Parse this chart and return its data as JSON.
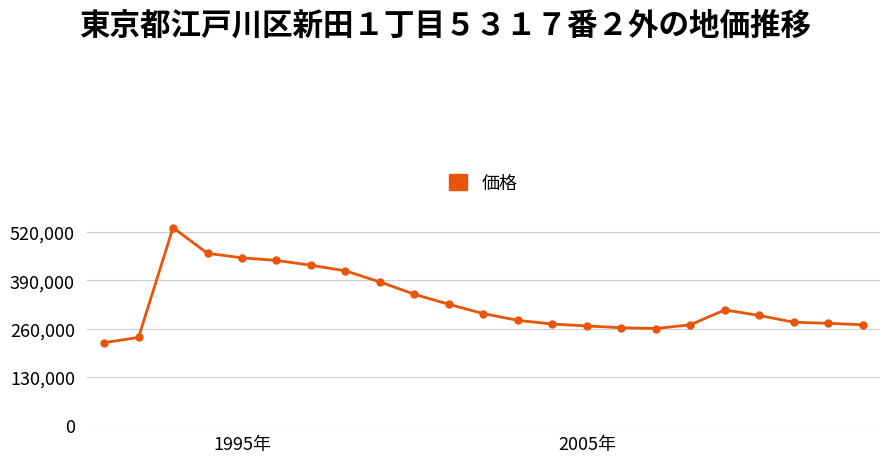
{
  "title": "東京都江戸川区新田１丁目５３１７番２外の地価推移",
  "legend_label": "価格",
  "line_color": "#e8550a",
  "marker_color": "#e8550a",
  "background_color": "#ffffff",
  "years": [
    1991,
    1992,
    1993,
    1994,
    1995,
    1996,
    1997,
    1998,
    1999,
    2000,
    2001,
    2002,
    2003,
    2004,
    2005,
    2006,
    2007,
    2008,
    2009,
    2010,
    2011,
    2012,
    2013
  ],
  "values": [
    222000,
    236000,
    531000,
    462000,
    450000,
    443000,
    430000,
    415000,
    385000,
    352000,
    325000,
    300000,
    282000,
    272000,
    267000,
    262000,
    260000,
    270000,
    310000,
    295000,
    277000,
    274000,
    270000
  ],
  "yticks": [
    0,
    130000,
    260000,
    390000,
    520000
  ],
  "xtick_years": [
    1995,
    2005
  ],
  "xtick_labels": [
    "1995年",
    "2005年"
  ],
  "ylim": [
    0,
    590000
  ],
  "title_fontsize": 22,
  "legend_fontsize": 13,
  "tick_fontsize": 13
}
